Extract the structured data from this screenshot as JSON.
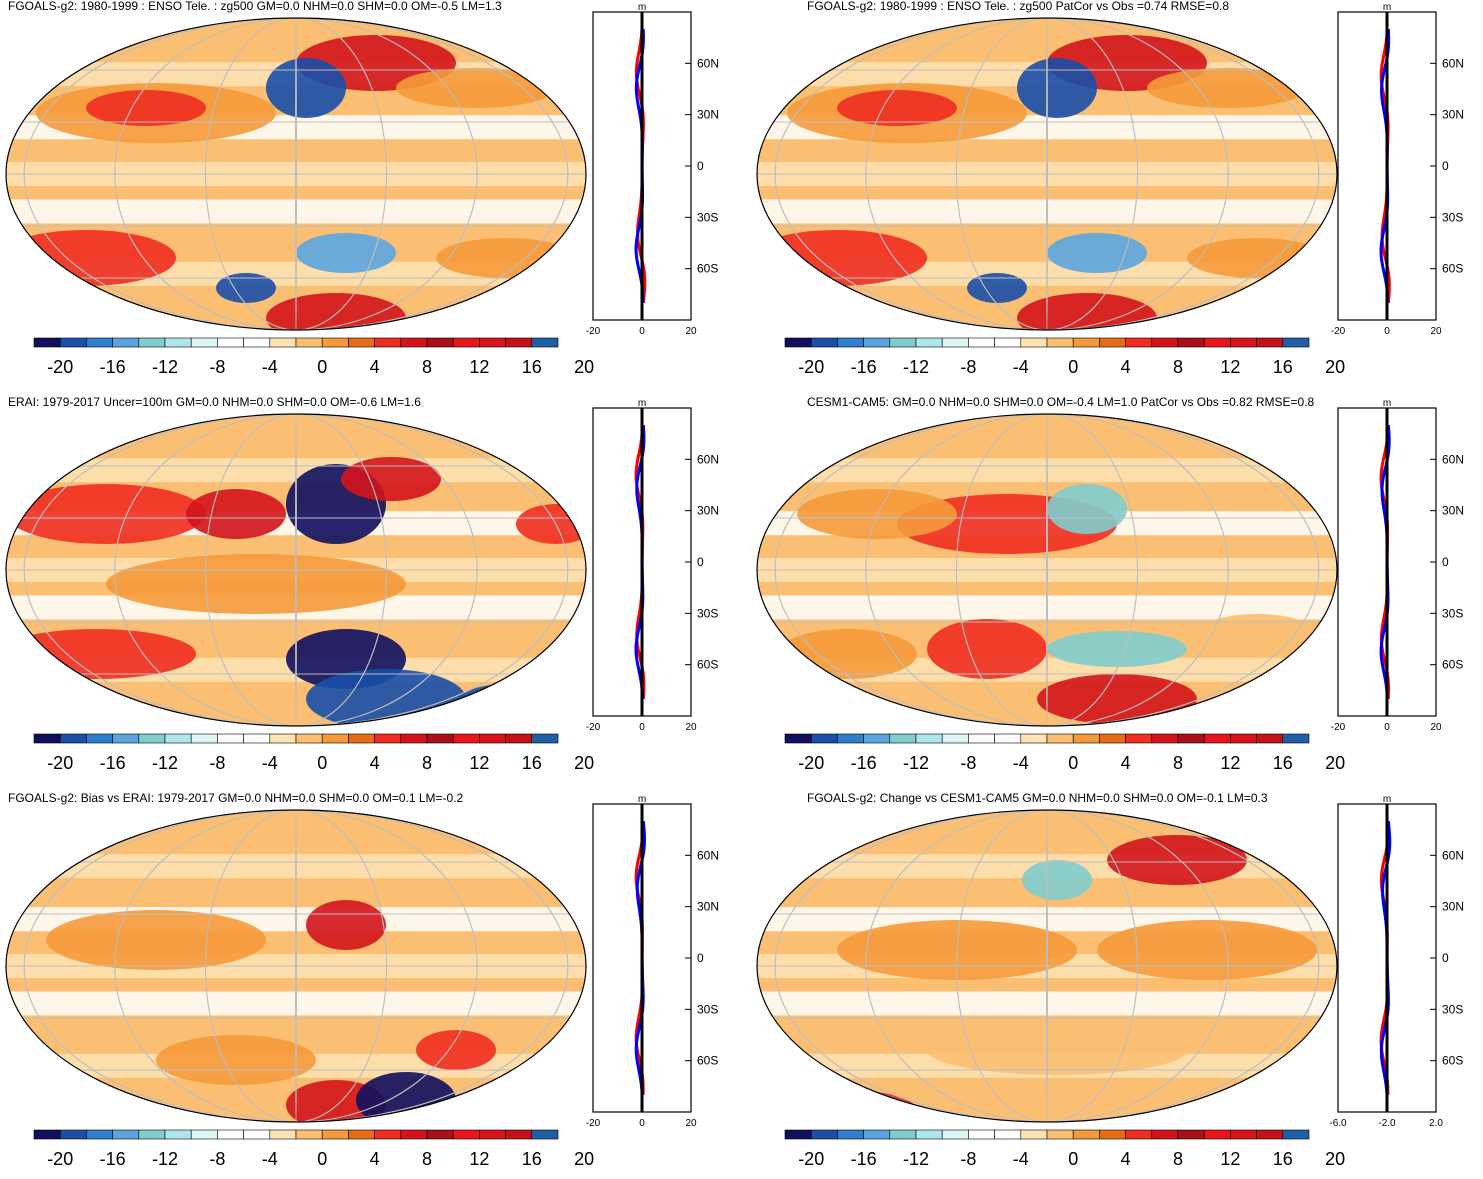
{
  "colorbar": {
    "colors": [
      "#10105f",
      "#1a4ea8",
      "#2f7fcf",
      "#5aa5e0",
      "#7fcdcd",
      "#aee6ec",
      "#dff6f6",
      "#ffffff",
      "#ffffff",
      "#fde3b4",
      "#fbbf74",
      "#f59a3a",
      "#e66c18",
      "#ef2d21",
      "#d3141c",
      "#a8101a",
      "#e8151b",
      "#d7141a",
      "#c4121a",
      "#1f5fa8"
    ],
    "tick_labels": [
      "-20",
      "-16",
      "-12",
      "-8",
      "-4",
      "0",
      "4",
      "8",
      "12",
      "16",
      "20"
    ]
  },
  "latitude_ticks": [
    "60N",
    "30N",
    "0",
    "30S",
    "60S"
  ],
  "line_colors": {
    "model": "#ff0000",
    "reference": "#0000ff",
    "zero": "#000000"
  },
  "panels": [
    {
      "id": "model-enso",
      "title": "FGOALS-g2: 1980-1999 : ENSO Tele. : zg500 GM=0.0 NHM=0.0 SHM=0.0 OM=-0.5 LM=1.3",
      "side_unit": "m",
      "side_xticks": [
        "-20",
        "0",
        "20"
      ]
    },
    {
      "id": "model-enso-patcor",
      "title": "FGOALS-g2: 1980-1999 : ENSO Tele. : zg500 PatCor vs Obs =0.74 RMSE=0.8",
      "side_unit": "m",
      "side_xticks": [
        "-20",
        "0",
        "20"
      ]
    },
    {
      "id": "erai",
      "title": "ERAI: 1979-2017 Uncer=100m GM=0.0 NHM=0.0 SHM=0.0 OM=-0.6 LM=1.6",
      "side_unit": "m",
      "side_xticks": [
        "-20",
        "0",
        "20"
      ]
    },
    {
      "id": "cesm",
      "title": "CESM1-CAM5: GM=0.0 NHM=0.0 SHM=0.0 OM=-0.4 LM=1.0 PatCor vs Obs =0.82 RMSE=0.8",
      "side_unit": "m",
      "side_xticks": [
        "-20",
        "0",
        "20"
      ]
    },
    {
      "id": "bias",
      "title": "FGOALS-g2: Bias vs ERAI: 1979-2017 GM=0.0 NHM=0.0 SHM=0.0 OM=0.1 LM=-0.2",
      "side_unit": "m",
      "side_xticks": [
        "-20",
        "0",
        "20"
      ]
    },
    {
      "id": "change",
      "title": "FGOALS-g2: Change vs CESM1-CAM5 GM=0.0 NHM=0.0 SHM=0.0 OM=-0.1 LM=0.3",
      "side_unit": "m",
      "side_xticks": [
        "-6.0",
        "-2.0",
        "2.0"
      ]
    }
  ]
}
